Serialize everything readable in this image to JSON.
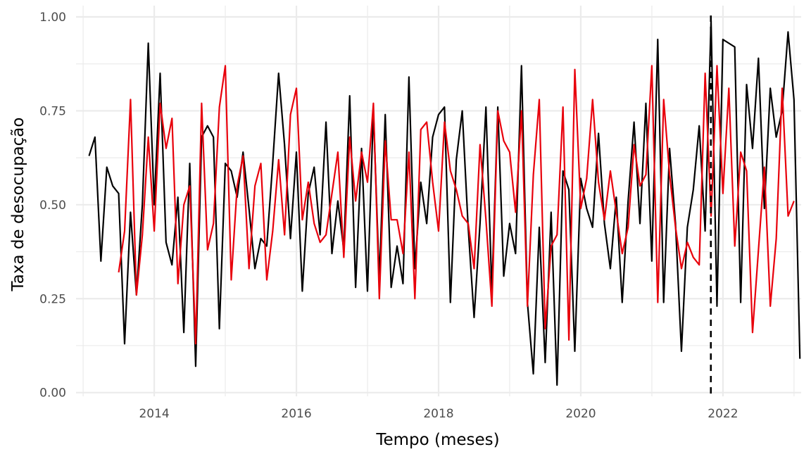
{
  "chart_data": {
    "type": "line",
    "xlabel": "Tempo (meses)",
    "ylabel": "Taxa de desocupação",
    "xlim": [
      2012.9,
      2023.1
    ],
    "ylim": [
      -0.01,
      1.03
    ],
    "x_ticks": [
      2014,
      2016,
      2018,
      2020,
      2022
    ],
    "x_tick_labels": [
      "2014",
      "2016",
      "2018",
      "2020",
      "2022"
    ],
    "y_ticks": [
      0,
      0.25,
      0.5,
      0.75,
      1.0
    ],
    "y_tick_labels": [
      "0.00",
      "0.25",
      "0.50",
      "0.75",
      "1.00"
    ],
    "grid": true,
    "legend": "none",
    "vline": {
      "x": 2021.83,
      "style": "dashed",
      "color": "#000000"
    },
    "series": [
      {
        "color": "#000000",
        "x_start": 2013.083,
        "x_step": 0.08333,
        "values": [
          0.63,
          0.68,
          0.35,
          0.6,
          0.55,
          0.53,
          0.13,
          0.48,
          0.26,
          0.5,
          0.93,
          0.5,
          0.85,
          0.4,
          0.34,
          0.52,
          0.16,
          0.61,
          0.07,
          0.68,
          0.71,
          0.68,
          0.17,
          0.61,
          0.59,
          0.52,
          0.64,
          0.49,
          0.33,
          0.41,
          0.39,
          0.61,
          0.85,
          0.66,
          0.41,
          0.64,
          0.27,
          0.53,
          0.6,
          0.42,
          0.72,
          0.37,
          0.51,
          0.38,
          0.79,
          0.28,
          0.65,
          0.27,
          0.75,
          0.3,
          0.74,
          0.28,
          0.39,
          0.29,
          0.84,
          0.33,
          0.56,
          0.45,
          0.68,
          0.74,
          0.76,
          0.24,
          0.62,
          0.75,
          0.44,
          0.2,
          0.45,
          0.76,
          0.27,
          0.76,
          0.31,
          0.45,
          0.37,
          0.87,
          0.24,
          0.05,
          0.44,
          0.08,
          0.48,
          0.02,
          0.59,
          0.54,
          0.11,
          0.57,
          0.49,
          0.44,
          0.69,
          0.45,
          0.33,
          0.52,
          0.24,
          0.51,
          0.72,
          0.45,
          0.77,
          0.35,
          0.94,
          0.24,
          0.65,
          0.45,
          0.11,
          0.44,
          0.54,
          0.71,
          0.43,
          0.99,
          0.23,
          0.94,
          0.93,
          0.92,
          0.24,
          0.82,
          0.65,
          0.89,
          0.49,
          0.81,
          0.68,
          0.75,
          0.96,
          0.78,
          0.09
        ]
      },
      {
        "color": "#e8000b",
        "x_start": 2013.5,
        "x_step": 0.08333,
        "values": [
          0.32,
          0.43,
          0.78,
          0.26,
          0.42,
          0.68,
          0.43,
          0.77,
          0.65,
          0.73,
          0.29,
          0.5,
          0.55,
          0.13,
          0.77,
          0.38,
          0.45,
          0.76,
          0.87,
          0.3,
          0.55,
          0.63,
          0.33,
          0.55,
          0.61,
          0.3,
          0.43,
          0.62,
          0.42,
          0.74,
          0.81,
          0.46,
          0.56,
          0.45,
          0.4,
          0.42,
          0.53,
          0.64,
          0.36,
          0.68,
          0.51,
          0.64,
          0.56,
          0.77,
          0.25,
          0.67,
          0.46,
          0.46,
          0.37,
          0.64,
          0.25,
          0.7,
          0.72,
          0.56,
          0.43,
          0.72,
          0.59,
          0.54,
          0.47,
          0.45,
          0.33,
          0.66,
          0.46,
          0.23,
          0.75,
          0.67,
          0.64,
          0.48,
          0.75,
          0.23,
          0.58,
          0.78,
          0.17,
          0.39,
          0.42,
          0.76,
          0.14,
          0.86,
          0.49,
          0.57,
          0.78,
          0.56,
          0.46,
          0.59,
          0.48,
          0.37,
          0.44,
          0.66,
          0.55,
          0.58,
          0.87,
          0.24,
          0.78,
          0.58,
          0.44,
          0.33,
          0.4,
          0.36,
          0.34,
          0.85,
          0.47,
          0.87,
          0.53,
          0.81,
          0.39,
          0.64,
          0.59,
          0.16,
          0.38,
          0.6,
          0.23,
          0.41,
          0.81,
          0.47,
          0.51
        ]
      }
    ]
  }
}
